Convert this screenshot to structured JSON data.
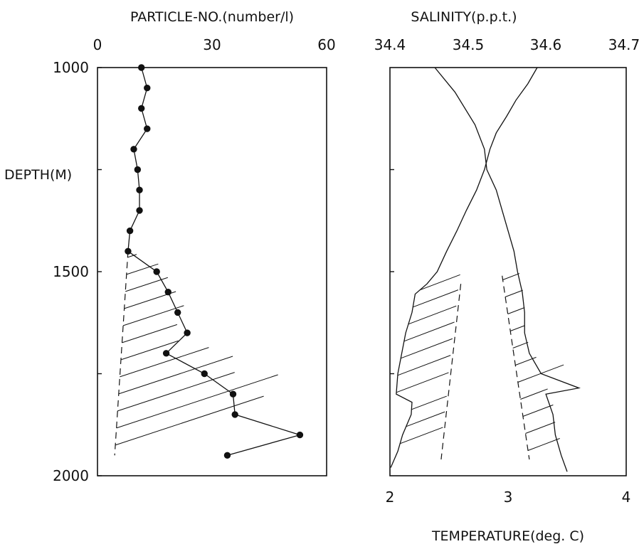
{
  "chart_data": [
    {
      "type": "line",
      "panel": "particles",
      "title": "PARTICLE-NO.(number/l)",
      "ylabel": "DEPTH(M)",
      "xlim": [
        0,
        60
      ],
      "ylim": [
        1000,
        2000
      ],
      "y_inverted": true,
      "x_ticks": [
        "0",
        "30",
        "60"
      ],
      "y_ticks": [
        "1000",
        "1500",
        "2000"
      ],
      "series": [
        {
          "marker": "filled-circle",
          "points": [
            {
              "x": 11.5,
              "y": 1000
            },
            {
              "x": 13.0,
              "y": 1050
            },
            {
              "x": 11.5,
              "y": 1100
            },
            {
              "x": 13.0,
              "y": 1150
            },
            {
              "x": 9.5,
              "y": 1200
            },
            {
              "x": 10.5,
              "y": 1250
            },
            {
              "x": 11.0,
              "y": 1300
            },
            {
              "x": 11.0,
              "y": 1350
            },
            {
              "x": 8.5,
              "y": 1400
            },
            {
              "x": 8.0,
              "y": 1450
            },
            {
              "x": 15.5,
              "y": 1500
            },
            {
              "x": 18.5,
              "y": 1550
            },
            {
              "x": 21.0,
              "y": 1600
            },
            {
              "x": 23.5,
              "y": 1650
            },
            {
              "x": 18.0,
              "y": 1700
            },
            {
              "x": 28.0,
              "y": 1750
            },
            {
              "x": 35.5,
              "y": 1800
            },
            {
              "x": 36.0,
              "y": 1850
            },
            {
              "x": 53.0,
              "y": 1900
            },
            {
              "x": 34.0,
              "y": 1950
            }
          ]
        },
        {
          "style": "dashed",
          "points": [
            {
              "x": 8.0,
              "y": 1450
            },
            {
              "x": 4.5,
              "y": 1950
            }
          ]
        }
      ],
      "hatched_region": "between dashed line and profile, 1450-1950 m"
    },
    {
      "type": "line",
      "panel": "salinity-temperature",
      "title": "SALINITY(p.p.t.)",
      "xlabel": "TEMPERATURE(deg. C)",
      "ylim": [
        1000,
        2000
      ],
      "y_inverted": true,
      "top_axis": {
        "range": [
          34.4,
          34.7
        ],
        "ticks": [
          "34.4",
          "34.5",
          "34.6",
          "34.7"
        ]
      },
      "bottom_axis": {
        "range": [
          2,
          4
        ],
        "ticks": [
          "2",
          "3",
          "4"
        ]
      },
      "series": [
        {
          "axis": "top",
          "style": "solid",
          "points": [
            {
              "x": 34.587,
              "y": 1000
            },
            {
              "x": 34.575,
              "y": 1040
            },
            {
              "x": 34.56,
              "y": 1080
            },
            {
              "x": 34.548,
              "y": 1120
            },
            {
              "x": 34.535,
              "y": 1160
            },
            {
              "x": 34.527,
              "y": 1200
            },
            {
              "x": 34.52,
              "y": 1250
            },
            {
              "x": 34.51,
              "y": 1300
            },
            {
              "x": 34.497,
              "y": 1350
            },
            {
              "x": 34.485,
              "y": 1400
            },
            {
              "x": 34.472,
              "y": 1450
            },
            {
              "x": 34.46,
              "y": 1500
            },
            {
              "x": 34.447,
              "y": 1530
            },
            {
              "x": 34.432,
              "y": 1555
            },
            {
              "x": 34.428,
              "y": 1600
            },
            {
              "x": 34.42,
              "y": 1650
            },
            {
              "x": 34.415,
              "y": 1700
            },
            {
              "x": 34.41,
              "y": 1750
            },
            {
              "x": 34.408,
              "y": 1800
            },
            {
              "x": 34.428,
              "y": 1820
            },
            {
              "x": 34.427,
              "y": 1850
            },
            {
              "x": 34.416,
              "y": 1900
            },
            {
              "x": 34.41,
              "y": 1940
            },
            {
              "x": 34.401,
              "y": 1980
            }
          ]
        },
        {
          "axis": "top",
          "style": "dashed",
          "points": [
            {
              "x": 34.49,
              "y": 1530
            },
            {
              "x": 34.465,
              "y": 1960
            }
          ]
        },
        {
          "axis": "bottom",
          "style": "solid",
          "points": [
            {
              "x": 2.38,
              "y": 1000
            },
            {
              "x": 2.55,
              "y": 1060
            },
            {
              "x": 2.72,
              "y": 1140
            },
            {
              "x": 2.8,
              "y": 1200
            },
            {
              "x": 2.82,
              "y": 1250
            },
            {
              "x": 2.9,
              "y": 1300
            },
            {
              "x": 2.95,
              "y": 1350
            },
            {
              "x": 3.0,
              "y": 1400
            },
            {
              "x": 3.05,
              "y": 1450
            },
            {
              "x": 3.08,
              "y": 1500
            },
            {
              "x": 3.12,
              "y": 1550
            },
            {
              "x": 3.14,
              "y": 1600
            },
            {
              "x": 3.14,
              "y": 1650
            },
            {
              "x": 3.18,
              "y": 1700
            },
            {
              "x": 3.28,
              "y": 1750
            },
            {
              "x": 3.6,
              "y": 1785
            },
            {
              "x": 3.32,
              "y": 1800
            },
            {
              "x": 3.38,
              "y": 1850
            },
            {
              "x": 3.4,
              "y": 1900
            },
            {
              "x": 3.45,
              "y": 1950
            },
            {
              "x": 3.5,
              "y": 1990
            }
          ]
        },
        {
          "axis": "bottom",
          "style": "dashed",
          "points": [
            {
              "x": 2.95,
              "y": 1510
            },
            {
              "x": 3.18,
              "y": 1960
            }
          ]
        }
      ],
      "hatched_regions": [
        "between salinity profile and its dashed line, 1530-1960 m",
        "between dashed temperature line and temperature profile, 1510-1960 m"
      ]
    }
  ]
}
